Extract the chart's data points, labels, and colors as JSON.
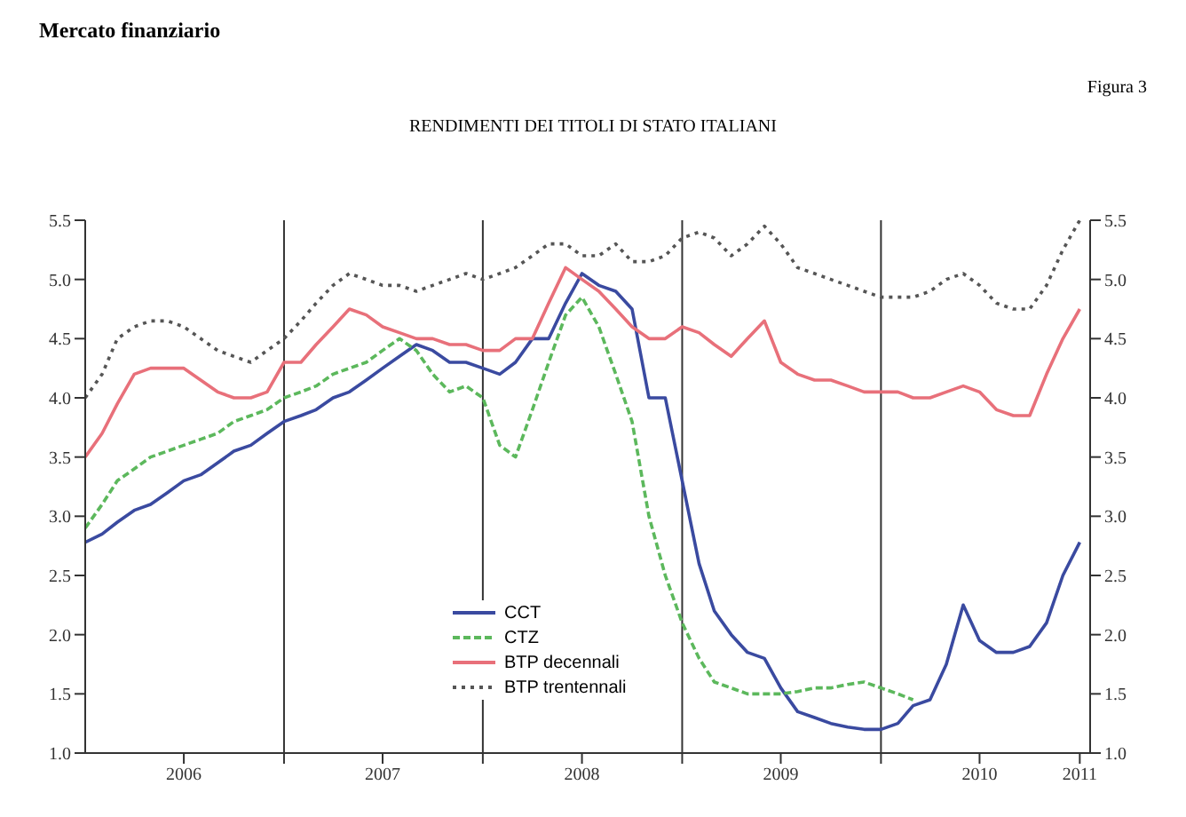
{
  "chart_data": {
    "type": "line",
    "title": "RENDIMENTI DEI TITOLI DI STATO ITALIANI",
    "subtitle": "Mercato finanziario",
    "annotations": [
      "Figura 3"
    ],
    "x": [
      "2006-01",
      "2006-02",
      "2006-03",
      "2006-04",
      "2006-05",
      "2006-06",
      "2006-07",
      "2006-08",
      "2006-09",
      "2006-10",
      "2006-11",
      "2006-12",
      "2007-01",
      "2007-02",
      "2007-03",
      "2007-04",
      "2007-05",
      "2007-06",
      "2007-07",
      "2007-08",
      "2007-09",
      "2007-10",
      "2007-11",
      "2007-12",
      "2008-01",
      "2008-02",
      "2008-03",
      "2008-04",
      "2008-05",
      "2008-06",
      "2008-07",
      "2008-08",
      "2008-09",
      "2008-10",
      "2008-11",
      "2008-12",
      "2009-01",
      "2009-02",
      "2009-03",
      "2009-04",
      "2009-05",
      "2009-06",
      "2009-07",
      "2009-08",
      "2009-09",
      "2009-10",
      "2009-11",
      "2009-12",
      "2010-01",
      "2010-02",
      "2010-03",
      "2010-04",
      "2010-05",
      "2010-06",
      "2010-07",
      "2010-08",
      "2010-09",
      "2010-10",
      "2010-11",
      "2010-12",
      "2011-01"
    ],
    "series": [
      {
        "name": "CCT",
        "color": "#3a4aa0",
        "line_style": "solid",
        "values": [
          2.78,
          2.85,
          2.95,
          3.05,
          3.1,
          3.2,
          3.3,
          3.35,
          3.45,
          3.55,
          3.6,
          3.7,
          3.8,
          3.85,
          3.9,
          4.0,
          4.05,
          4.15,
          4.25,
          4.35,
          4.45,
          4.4,
          4.3,
          4.3,
          4.25,
          4.2,
          4.3,
          4.5,
          4.5,
          4.8,
          5.05,
          4.95,
          4.9,
          4.75,
          4.0,
          4.0,
          3.3,
          2.6,
          2.2,
          2.0,
          1.85,
          1.8,
          1.55,
          1.35,
          1.3,
          1.25,
          1.22,
          1.2,
          1.2,
          1.25,
          1.4,
          1.45,
          1.75,
          2.25,
          1.95,
          1.85,
          1.85,
          1.9,
          2.1,
          2.5,
          2.78
        ]
      },
      {
        "name": "CTZ",
        "color": "#5cb85c",
        "line_style": "dashed",
        "values": [
          2.9,
          3.1,
          3.3,
          3.4,
          3.5,
          3.55,
          3.6,
          3.65,
          3.7,
          3.8,
          3.85,
          3.9,
          4.0,
          4.05,
          4.1,
          4.2,
          4.25,
          4.3,
          4.4,
          4.5,
          4.4,
          4.2,
          4.05,
          4.1,
          4.0,
          3.6,
          3.5,
          3.9,
          4.3,
          4.7,
          4.85,
          4.6,
          4.2,
          3.8,
          3.0,
          2.5,
          2.1,
          1.8,
          1.6,
          1.55,
          1.5,
          1.5,
          1.5,
          1.52,
          1.55,
          1.55,
          1.58,
          1.6,
          1.55,
          1.5,
          1.45,
          null,
          null,
          null,
          null,
          null,
          null,
          null,
          null,
          null,
          null
        ]
      },
      {
        "name": "BTP decennali",
        "color": "#e8707a",
        "line_style": "solid",
        "values": [
          3.5,
          3.7,
          3.95,
          4.2,
          4.25,
          4.25,
          4.25,
          4.15,
          4.05,
          4.0,
          4.0,
          4.05,
          4.3,
          4.3,
          4.45,
          4.6,
          4.75,
          4.7,
          4.6,
          4.55,
          4.5,
          4.5,
          4.45,
          4.45,
          4.4,
          4.4,
          4.5,
          4.5,
          4.8,
          5.1,
          5.0,
          4.9,
          4.75,
          4.6,
          4.5,
          4.5,
          4.6,
          4.55,
          4.45,
          4.35,
          4.5,
          4.65,
          4.3,
          4.2,
          4.15,
          4.15,
          4.1,
          4.05,
          4.05,
          4.05,
          4.0,
          4.0,
          4.05,
          4.1,
          4.05,
          3.9,
          3.85,
          3.85,
          4.2,
          4.5,
          4.75
        ]
      },
      {
        "name": "BTP trentennali",
        "color": "#555555",
        "line_style": "dotted",
        "values": [
          4.0,
          4.2,
          4.5,
          4.6,
          4.65,
          4.65,
          4.6,
          4.5,
          4.4,
          4.35,
          4.3,
          4.4,
          4.5,
          4.65,
          4.8,
          4.95,
          5.05,
          5.0,
          4.95,
          4.95,
          4.9,
          4.95,
          5.0,
          5.05,
          5.0,
          5.05,
          5.1,
          5.2,
          5.3,
          5.3,
          5.2,
          5.2,
          5.3,
          5.15,
          5.15,
          5.2,
          5.35,
          5.4,
          5.35,
          5.2,
          5.3,
          5.45,
          5.3,
          5.1,
          5.05,
          5.0,
          4.95,
          4.9,
          4.85,
          4.85,
          4.85,
          4.9,
          5.0,
          5.05,
          4.95,
          4.8,
          4.75,
          4.75,
          4.95,
          5.25,
          5.5
        ]
      }
    ],
    "xlim": [
      "2006-01",
      "2011-01-20"
    ],
    "xticks": [
      {
        "value": "2006-07",
        "label": "2006"
      },
      {
        "value": "2007-01",
        "label": null
      },
      {
        "value": "2007-07",
        "label": "2007"
      },
      {
        "value": "2008-01",
        "label": null
      },
      {
        "value": "2008-07",
        "label": "2008"
      },
      {
        "value": "2009-01",
        "label": null
      },
      {
        "value": "2009-07",
        "label": "2009"
      },
      {
        "value": "2010-01",
        "label": null
      },
      {
        "value": "2010-07",
        "label": "2010"
      },
      {
        "value": "2011-01",
        "label": "2011"
      }
    ],
    "ylim": [
      1.0,
      5.5
    ],
    "yticks": [
      {
        "value": 1.0,
        "label": "1.0"
      },
      {
        "value": 1.5,
        "label": "1.5"
      },
      {
        "value": 2.0,
        "label": "2.0"
      },
      {
        "value": 2.5,
        "label": "2.5"
      },
      {
        "value": 3.0,
        "label": "3.0"
      },
      {
        "value": 3.5,
        "label": "3.5"
      },
      {
        "value": 4.0,
        "label": "4.0"
      },
      {
        "value": 4.5,
        "label": "4.5"
      },
      {
        "value": 5.0,
        "label": "5.0"
      },
      {
        "value": 5.5,
        "label": "5.5"
      }
    ],
    "y2lim": [
      1.0,
      5.5
    ],
    "y2ticks": [
      {
        "value": 1.0,
        "label": "1.0"
      },
      {
        "value": 1.5,
        "label": "1.5"
      },
      {
        "value": 2.0,
        "label": "2.0"
      },
      {
        "value": 2.5,
        "label": "2.5"
      },
      {
        "value": 3.0,
        "label": "3.0"
      },
      {
        "value": 3.5,
        "label": "3.5"
      },
      {
        "value": 4.0,
        "label": "4.0"
      },
      {
        "value": 4.5,
        "label": "4.5"
      },
      {
        "value": 5.0,
        "label": "5.0"
      },
      {
        "value": 5.5,
        "label": "5.5"
      }
    ],
    "grid": true,
    "legend": "bottom",
    "marker": "none"
  }
}
